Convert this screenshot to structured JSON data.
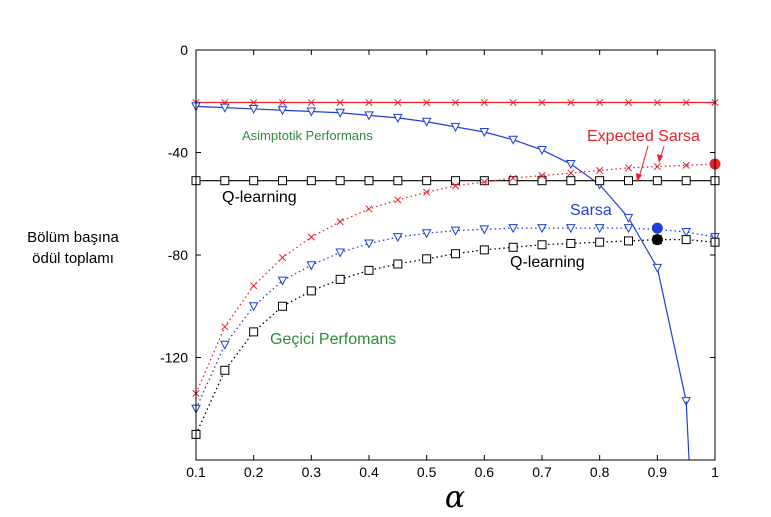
{
  "chart_data": {
    "type": "line",
    "xlabel": "α",
    "ylabel_lines": [
      "Bölüm başına",
      "ödül toplamı"
    ],
    "xlim": [
      0.1,
      1.0
    ],
    "ylim": [
      -160,
      0
    ],
    "xticks": [
      "0.1",
      "0.2",
      "0.3",
      "0.4",
      "0.5",
      "0.6",
      "0.7",
      "0.8",
      "0.9",
      "1"
    ],
    "yticks": [
      {
        "value": 0,
        "label": "0"
      },
      {
        "value": -40,
        "label": "-40"
      },
      {
        "value": -80,
        "label": "-80"
      },
      {
        "value": -120,
        "label": "-120"
      }
    ],
    "grid": false,
    "annotations": {
      "asimptotik": "Asimptotik Performans",
      "gecici": "Geçici Perfomans",
      "expected_sarsa": "Expected Sarsa",
      "sarsa": "Sarsa",
      "qlearning_top": "Q-learning",
      "qlearning_bottom": "Q-learning"
    },
    "colors": {
      "red": "#e8222a",
      "blue": "#1f3fd8",
      "black": "#000000",
      "green": "#2e8b3a"
    },
    "series": [
      {
        "key": "es_asym",
        "color": "red",
        "marker": "x",
        "style": "solid",
        "x": [
          0.1,
          0.15,
          0.2,
          0.25,
          0.3,
          0.35,
          0.4,
          0.45,
          0.5,
          0.55,
          0.6,
          0.65,
          0.7,
          0.75,
          0.8,
          0.85,
          0.9,
          0.95,
          1.0
        ],
        "y": [
          -20.5,
          -20.5,
          -20.5,
          -20.5,
          -20.5,
          -20.5,
          -20.5,
          -20.5,
          -20.5,
          -20.5,
          -20.5,
          -20.5,
          -20.5,
          -20.5,
          -20.5,
          -20.5,
          -20.5,
          -20.5,
          -20.5
        ]
      },
      {
        "key": "sarsa_asym",
        "color": "blue",
        "marker": "triangle",
        "style": "solid",
        "x": [
          0.1,
          0.15,
          0.2,
          0.25,
          0.3,
          0.35,
          0.4,
          0.45,
          0.5,
          0.55,
          0.6,
          0.65,
          0.7,
          0.75,
          0.8,
          0.85,
          0.9,
          0.95
        ],
        "y": [
          -22,
          -22.5,
          -23,
          -23.5,
          -24,
          -24.5,
          -25.5,
          -26.5,
          -28,
          -30,
          -32,
          -35,
          -39,
          -44.5,
          -52.5,
          -65.5,
          -85,
          -137
        ]
      },
      {
        "key": "sarsa_asym_tail",
        "color": "blue",
        "marker": "none",
        "style": "solid",
        "x": [
          0.95,
          0.955
        ],
        "y": [
          -137,
          -160
        ]
      },
      {
        "key": "q_asym",
        "color": "black",
        "marker": "square",
        "style": "solid",
        "x": [
          0.1,
          0.15,
          0.2,
          0.25,
          0.3,
          0.35,
          0.4,
          0.45,
          0.5,
          0.55,
          0.6,
          0.65,
          0.7,
          0.75,
          0.8,
          0.85,
          0.9,
          0.95,
          1.0
        ],
        "y": [
          -51,
          -51,
          -51,
          -51,
          -51,
          -51,
          -51,
          -51,
          -51,
          -51,
          -51,
          -51,
          -51,
          -51,
          -51,
          -51,
          -51,
          -51,
          -51
        ]
      },
      {
        "key": "es_interim",
        "color": "red",
        "marker": "x",
        "style": "dotted",
        "x": [
          0.1,
          0.15,
          0.2,
          0.25,
          0.3,
          0.35,
          0.4,
          0.45,
          0.5,
          0.55,
          0.6,
          0.65,
          0.7,
          0.75,
          0.8,
          0.85,
          0.9,
          0.95,
          1.0
        ],
        "y": [
          -134,
          -108,
          -92,
          -81,
          -73,
          -67,
          -62,
          -58.5,
          -55.5,
          -53,
          -51.5,
          -50,
          -49,
          -48,
          -47,
          -46,
          -45.5,
          -45,
          -44.5
        ]
      },
      {
        "key": "sarsa_interim",
        "color": "blue",
        "marker": "triangle",
        "style": "dotted",
        "x": [
          0.1,
          0.15,
          0.2,
          0.25,
          0.3,
          0.35,
          0.4,
          0.45,
          0.5,
          0.55,
          0.6,
          0.65,
          0.7,
          0.75,
          0.8,
          0.85,
          0.9,
          0.95,
          1.0
        ],
        "y": [
          -140,
          -115,
          -100,
          -90,
          -84,
          -79,
          -75.5,
          -73,
          -71.5,
          -70.5,
          -70,
          -69.5,
          -69.5,
          -69.5,
          -69.5,
          -69.5,
          -70,
          -71,
          -73
        ]
      },
      {
        "key": "q_interim",
        "color": "black",
        "marker": "square",
        "style": "dotted",
        "x": [
          0.1,
          0.15,
          0.2,
          0.25,
          0.3,
          0.35,
          0.4,
          0.45,
          0.5,
          0.55,
          0.6,
          0.65,
          0.7,
          0.75,
          0.8,
          0.85,
          0.9,
          0.95,
          1.0
        ],
        "y": [
          -150,
          -125,
          -110,
          -100,
          -94,
          -89.5,
          -86,
          -83.5,
          -81.5,
          -79.5,
          -78,
          -77,
          -76,
          -75.5,
          -75,
          -74.5,
          -74,
          -74,
          -75
        ]
      }
    ],
    "big_dots": [
      {
        "x": 1.0,
        "y": -44.5,
        "color": "red"
      },
      {
        "x": 0.9,
        "y": -69.5,
        "color": "blue"
      },
      {
        "x": 0.9,
        "y": -74,
        "color": "black"
      }
    ]
  }
}
